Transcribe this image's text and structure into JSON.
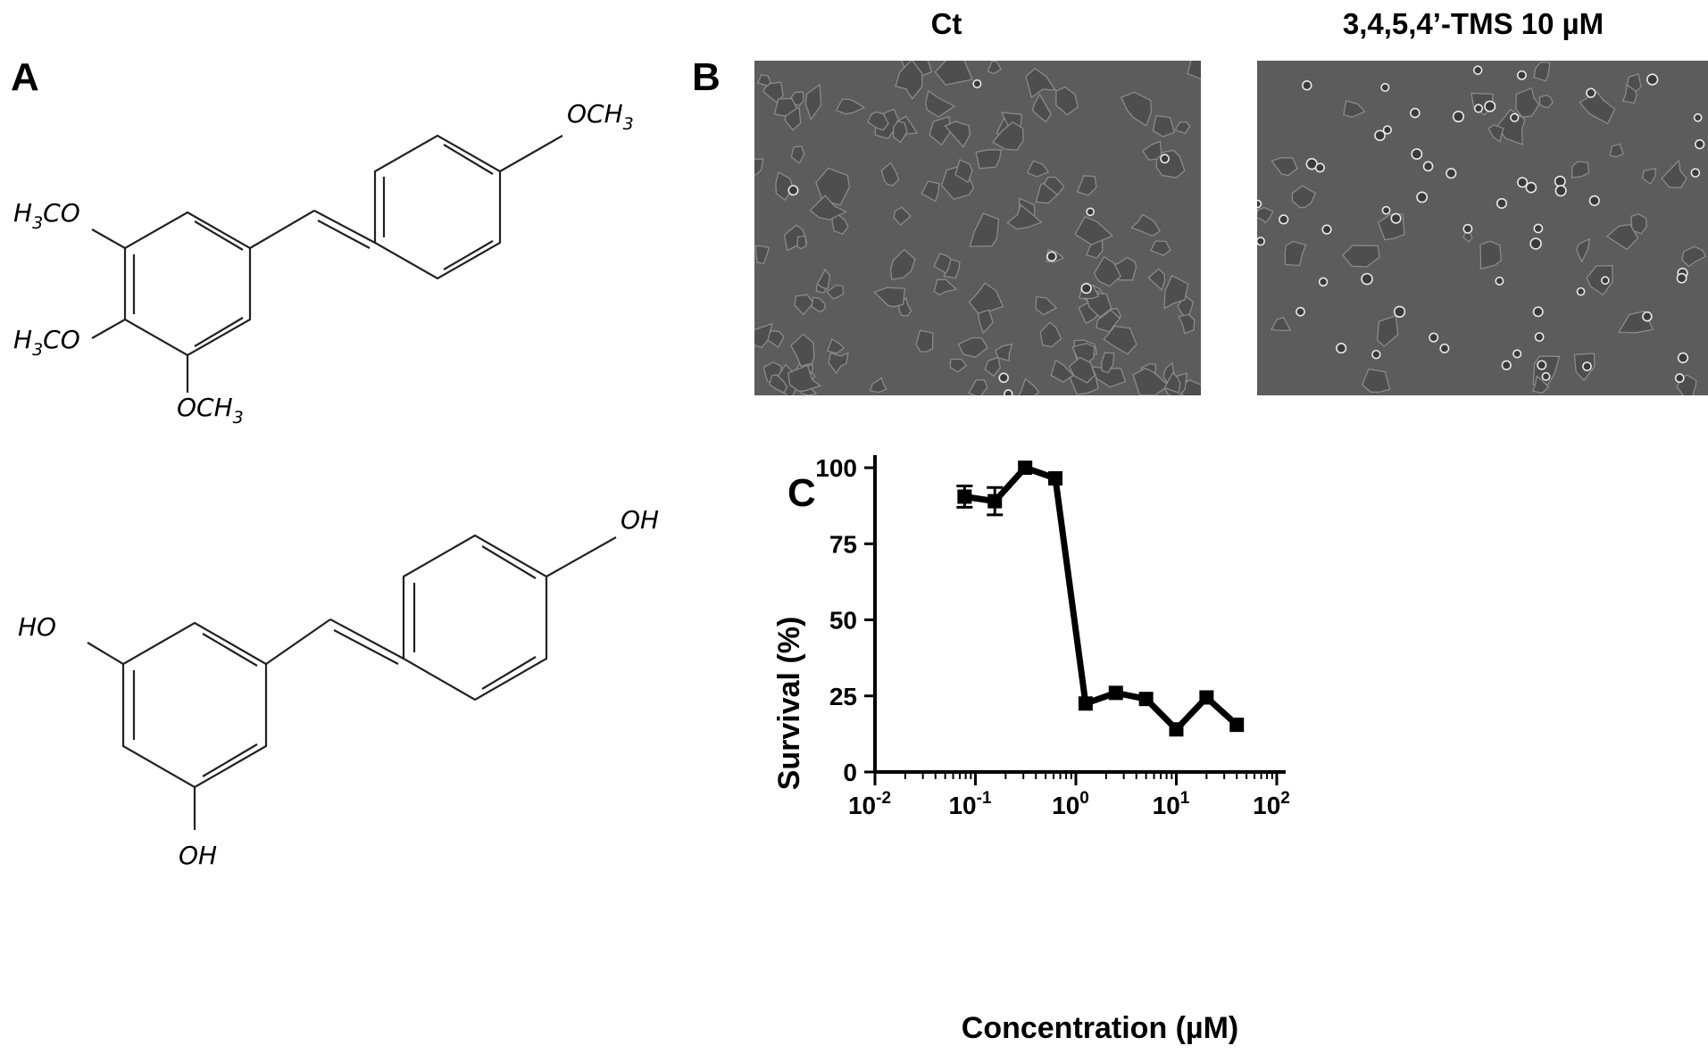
{
  "panels": {
    "a": "A",
    "b": "B",
    "c": "C"
  },
  "micrographs": {
    "left_title": "Ct",
    "right_title": "3,4,5,4’-TMS 10 µM"
  },
  "structures": {
    "top": {
      "sub1_main": "H",
      "sub1_sub": "3",
      "sub1_end": "CO",
      "sub2_main": "H",
      "sub2_sub": "3",
      "sub2_end": "CO",
      "sub3_main": "OCH",
      "sub3_sub": "3",
      "sub4_main": "OCH",
      "sub4_sub": "3"
    },
    "bottom": {
      "oh_left": "HO",
      "oh_bottom": "OH",
      "oh_right": "OH"
    }
  },
  "chart_data": {
    "type": "line",
    "title": "",
    "xlabel": "Concentration (µM)",
    "ylabel": "Survival (%)",
    "x_scale": "log",
    "xlim": [
      0.01,
      100
    ],
    "ylim": [
      0,
      110
    ],
    "yticks": [
      0,
      25,
      50,
      75,
      100
    ],
    "xticks": [
      {
        "value": 0.01,
        "base": "10",
        "exp": "-2"
      },
      {
        "value": 0.1,
        "base": "10",
        "exp": "-1"
      },
      {
        "value": 1,
        "base": "10",
        "exp": "0"
      },
      {
        "value": 10,
        "base": "10",
        "exp": "1"
      },
      {
        "value": 100,
        "base": "10",
        "exp": "2"
      }
    ],
    "legend_position": "top-right",
    "grid": false,
    "series": [
      {
        "name": "3,4,5,4’-TMS",
        "color": "#000000",
        "marker": "square",
        "x": [
          0.078,
          0.156,
          0.3125,
          0.625,
          1.25,
          2.5,
          5,
          10,
          20,
          40
        ],
        "y": [
          90.5,
          89,
          100,
          96.5,
          22.5,
          26,
          24,
          14,
          24.5,
          15.5
        ],
        "err": [
          3.5,
          4.5,
          1,
          1,
          1,
          1,
          1,
          1,
          1,
          1
        ]
      }
    ]
  }
}
